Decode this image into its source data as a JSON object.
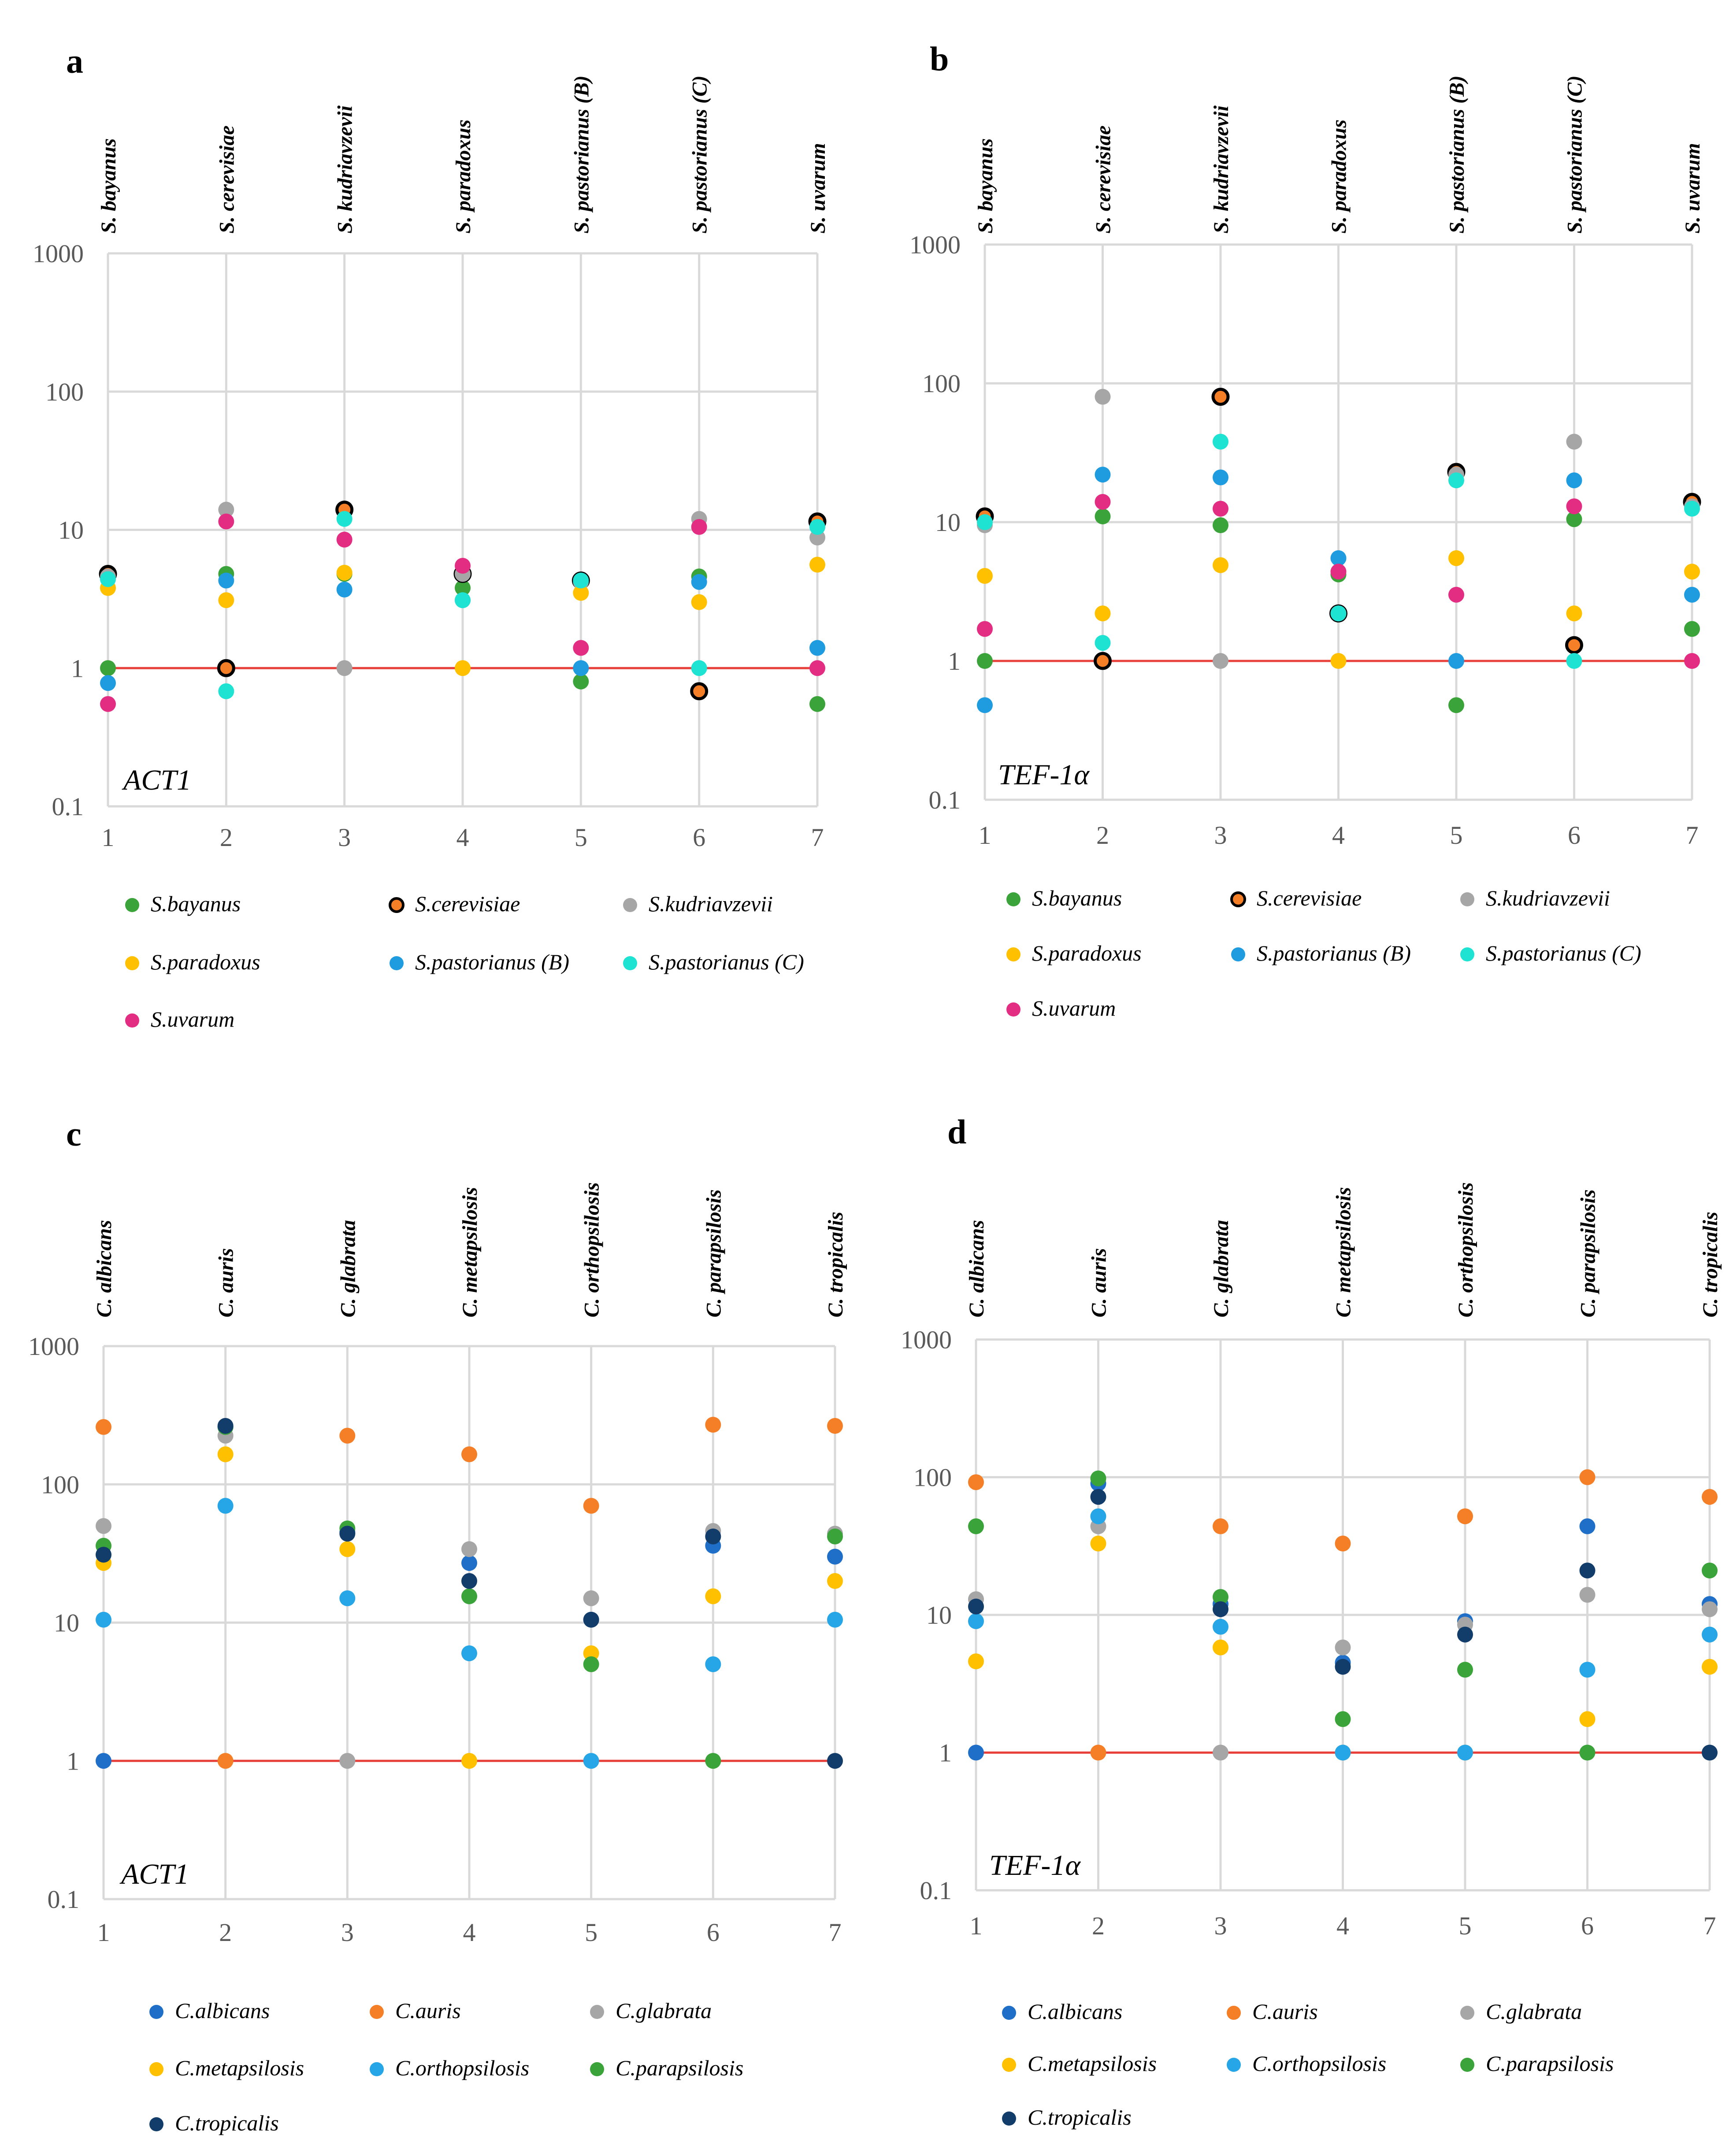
{
  "colors": {
    "grid": "#d9d9d9",
    "reference_line": "#e8403a",
    "axis_text": "#595959",
    "S.bayanus": "#3aa339",
    "S.cerevisiae": "#f57f27",
    "S.kudriavzevii": "#a6a6a6",
    "S.paradoxus": "#ffc000",
    "S.pastorianus (B)": "#1f9ce0",
    "S.pastorianus (C)": "#1ee3d2",
    "S.uvarum": "#e32d82",
    "C.albicans": "#1f6fc8",
    "C.auris": "#f57f27",
    "C.glabrata": "#a6a6a6",
    "C.metapsilosis": "#ffc000",
    "C.orthopsilosis": "#26a6e6",
    "C.parapsilosis": "#3aa339",
    "C.tropicalis": "#123d6b"
  },
  "chart_data": [
    {
      "panel": "a",
      "type": "scatter",
      "gene_label": "ACT1",
      "yscale": "log",
      "ylim": [
        0.1,
        1000
      ],
      "yticks": [
        "0.1",
        "1",
        "10",
        "100",
        "1000"
      ],
      "x": [
        1,
        2,
        3,
        4,
        5,
        6,
        7
      ],
      "xticks": [
        "1",
        "2",
        "3",
        "4",
        "5",
        "6",
        "7"
      ],
      "top_labels": [
        "S. bayanus",
        "S. cerevisiae",
        "S. kudriavzevii",
        "S. paradoxus",
        "S. pastorianus (B)",
        "S. pastorianus (C)",
        "S. uvarum"
      ],
      "reference_line": 1,
      "series": [
        {
          "name": "S.bayanus",
          "outlined": false,
          "values": [
            1.0,
            4.8,
            4.8,
            3.8,
            0.8,
            4.6,
            0.55
          ]
        },
        {
          "name": "S.cerevisiae",
          "outlined": true,
          "values": [
            4.8,
            1.0,
            14,
            4.8,
            4.3,
            0.68,
            11.5
          ]
        },
        {
          "name": "S.kudriavzevii",
          "outlined": false,
          "values": [
            4.6,
            14,
            1.0,
            4.8,
            4.2,
            12,
            8.8
          ]
        },
        {
          "name": "S.paradoxus",
          "outlined": false,
          "values": [
            3.8,
            3.1,
            4.9,
            1.0,
            3.5,
            3.0,
            5.6
          ]
        },
        {
          "name": "S.pastorianus (B)",
          "outlined": false,
          "values": [
            0.78,
            4.3,
            3.7,
            3.1,
            1.0,
            4.2,
            1.4
          ]
        },
        {
          "name": "S.pastorianus (C)",
          "outlined": false,
          "values": [
            4.4,
            0.68,
            12,
            3.1,
            4.3,
            1.0,
            10.5
          ]
        },
        {
          "name": "S.uvarum",
          "outlined": false,
          "values": [
            0.55,
            11.5,
            8.5,
            5.5,
            1.4,
            10.5,
            1.0
          ]
        }
      ],
      "legend": [
        "S.bayanus",
        "S.cerevisiae",
        "S.kudriavzevii",
        "S.paradoxus",
        "S.pastorianus (B)",
        "S.pastorianus (C)",
        "S.uvarum"
      ]
    },
    {
      "panel": "b",
      "type": "scatter",
      "gene_label": "TEF-1α",
      "yscale": "log",
      "ylim": [
        0.1,
        1000
      ],
      "yticks": [
        "0.1",
        "1",
        "10",
        "100",
        "1000"
      ],
      "x": [
        1,
        2,
        3,
        4,
        5,
        6,
        7
      ],
      "xticks": [
        "1",
        "2",
        "3",
        "4",
        "5",
        "6",
        "7"
      ],
      "top_labels": [
        "S. bayanus",
        "S. cerevisiae",
        "S. kudriavzevii",
        "S. paradoxus",
        "S. pastorianus (B)",
        "S. pastorianus (C)",
        "S. uvarum"
      ],
      "reference_line": 1,
      "series": [
        {
          "name": "S.bayanus",
          "outlined": false,
          "values": [
            1.0,
            11,
            9.5,
            4.2,
            0.48,
            10.5,
            1.7
          ]
        },
        {
          "name": "S.cerevisiae",
          "outlined": true,
          "values": [
            11,
            1.0,
            80,
            2.2,
            23,
            1.3,
            14
          ]
        },
        {
          "name": "S.kudriavzevii",
          "outlined": false,
          "values": [
            9.5,
            80,
            1.0,
            2.2,
            22,
            38,
            13
          ]
        },
        {
          "name": "S.paradoxus",
          "outlined": false,
          "values": [
            4.1,
            2.2,
            4.9,
            1.0,
            5.5,
            2.2,
            4.4
          ]
        },
        {
          "name": "S.pastorianus (B)",
          "outlined": false,
          "values": [
            0.48,
            22,
            21,
            5.5,
            1.0,
            20,
            3.0
          ]
        },
        {
          "name": "S.pastorianus (C)",
          "outlined": false,
          "values": [
            10,
            1.35,
            38,
            2.2,
            20,
            1.0,
            12.5
          ]
        },
        {
          "name": "S.uvarum",
          "outlined": false,
          "values": [
            1.7,
            14,
            12.5,
            4.4,
            3.0,
            13,
            1.0
          ]
        }
      ],
      "legend": [
        "S.bayanus",
        "S.cerevisiae",
        "S.kudriavzevii",
        "S.paradoxus",
        "S.pastorianus (B)",
        "S.pastorianus (C)",
        "S.uvarum"
      ]
    },
    {
      "panel": "c",
      "type": "scatter",
      "gene_label": "ACT1",
      "yscale": "log",
      "ylim": [
        0.1,
        1000
      ],
      "yticks": [
        "0.1",
        "1",
        "10",
        "100",
        "1000"
      ],
      "x": [
        1,
        2,
        3,
        4,
        5,
        6,
        7
      ],
      "xticks": [
        "1",
        "2",
        "3",
        "4",
        "5",
        "6",
        "7"
      ],
      "top_labels": [
        "C. albicans",
        "C. auris",
        "C. glabrata",
        "C. metapsilosis",
        "C. orthopsilosis",
        "C. parapsilosis",
        "C. tropicalis"
      ],
      "reference_line": 1,
      "series": [
        {
          "name": "C.albicans",
          "outlined": false,
          "values": [
            1.0,
            260,
            45,
            27,
            10.5,
            36,
            30
          ]
        },
        {
          "name": "C.auris",
          "outlined": false,
          "values": [
            260,
            1.0,
            225,
            165,
            70,
            270,
            265
          ]
        },
        {
          "name": "C.glabrata",
          "outlined": false,
          "values": [
            50,
            225,
            1.0,
            34,
            15,
            46,
            44
          ]
        },
        {
          "name": "C.metapsilosis",
          "outlined": false,
          "values": [
            27,
            165,
            34,
            1.0,
            6.0,
            15.5,
            20
          ]
        },
        {
          "name": "C.orthopsilosis",
          "outlined": false,
          "values": [
            10.5,
            70,
            15,
            6.0,
            1.0,
            5.0,
            10.5
          ]
        },
        {
          "name": "C.parapsilosis",
          "outlined": false,
          "values": [
            36,
            260,
            48,
            15.5,
            5.0,
            1.0,
            42
          ]
        },
        {
          "name": "C.tropicalis",
          "outlined": false,
          "values": [
            31,
            265,
            44,
            20,
            10.5,
            42,
            1.0
          ]
        }
      ],
      "legend": [
        "C.albicans",
        "C.auris",
        "C.glabrata",
        "C.metapsilosis",
        "C.orthopsilosis",
        "C.parapsilosis",
        "C.tropicalis"
      ]
    },
    {
      "panel": "d",
      "type": "scatter",
      "gene_label": "TEF-1α",
      "yscale": "log",
      "ylim": [
        0.1,
        1000
      ],
      "yticks": [
        "0.1",
        "1",
        "10",
        "100",
        "1000"
      ],
      "x": [
        1,
        2,
        3,
        4,
        5,
        6,
        7
      ],
      "xticks": [
        "1",
        "2",
        "3",
        "4",
        "5",
        "6",
        "7"
      ],
      "top_labels": [
        "C. albicans",
        "C. auris",
        "C. glabrata",
        "C. metapsilosis",
        "C. orthopsilosis",
        "C. parapsilosis",
        "C. tropicalis"
      ],
      "reference_line": 1,
      "series": [
        {
          "name": "C.albicans",
          "outlined": false,
          "values": [
            1.0,
            90,
            12,
            4.5,
            9.0,
            44,
            12
          ]
        },
        {
          "name": "C.auris",
          "outlined": false,
          "values": [
            92,
            1.0,
            44,
            33,
            52,
            100,
            72
          ]
        },
        {
          "name": "C.glabrata",
          "outlined": false,
          "values": [
            13,
            44,
            1.0,
            5.8,
            8.5,
            14,
            11
          ]
        },
        {
          "name": "C.metapsilosis",
          "outlined": false,
          "values": [
            4.6,
            33,
            5.8,
            1.0,
            1.0,
            1.75,
            4.2
          ]
        },
        {
          "name": "C.orthopsilosis",
          "outlined": false,
          "values": [
            9.0,
            52,
            8.2,
            1.0,
            1.0,
            4.0,
            7.2
          ]
        },
        {
          "name": "C.parapsilosis",
          "outlined": false,
          "values": [
            44,
            98,
            13.5,
            1.75,
            4.0,
            1.0,
            21
          ]
        },
        {
          "name": "C.tropicalis",
          "outlined": false,
          "values": [
            11.5,
            72,
            11,
            4.2,
            7.2,
            21,
            1.0
          ]
        }
      ],
      "legend": [
        "C.albicans",
        "C.auris",
        "C.glabrata",
        "C.metapsilosis",
        "C.orthopsilosis",
        "C.parapsilosis",
        "C.tropicalis"
      ]
    }
  ]
}
